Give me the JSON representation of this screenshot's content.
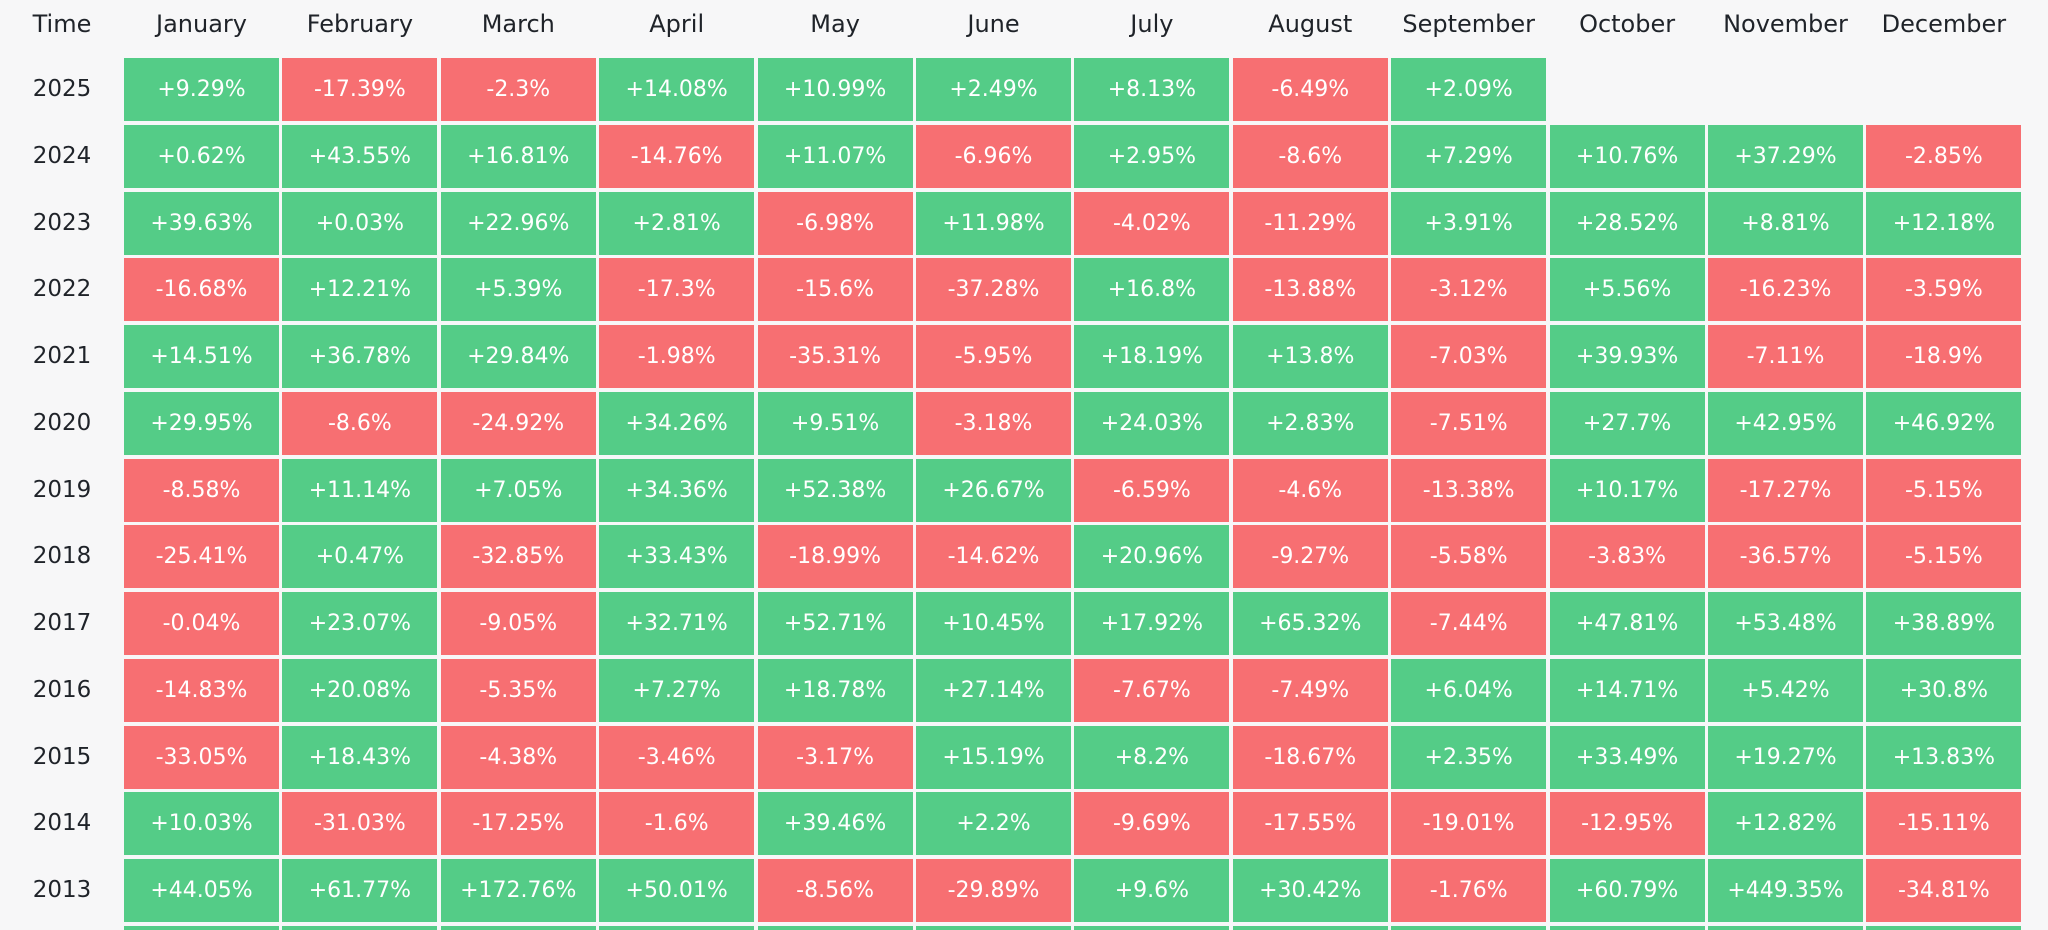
{
  "chart_data": {
    "type": "heatmap",
    "corner_label": "Time",
    "months": [
      "January",
      "February",
      "March",
      "April",
      "May",
      "June",
      "July",
      "August",
      "September",
      "October",
      "November",
      "December"
    ],
    "colors": {
      "positive": "#54cc87",
      "negative": "#f76f72"
    },
    "rows": [
      {
        "year": "2025",
        "values": [
          "+9.29%",
          "-17.39%",
          "-2.3%",
          "+14.08%",
          "+10.99%",
          "+2.49%",
          "+8.13%",
          "-6.49%",
          "+2.09%",
          "",
          "",
          ""
        ]
      },
      {
        "year": "2024",
        "values": [
          "+0.62%",
          "+43.55%",
          "+16.81%",
          "-14.76%",
          "+11.07%",
          "-6.96%",
          "+2.95%",
          "-8.6%",
          "+7.29%",
          "+10.76%",
          "+37.29%",
          "-2.85%"
        ]
      },
      {
        "year": "2023",
        "values": [
          "+39.63%",
          "+0.03%",
          "+22.96%",
          "+2.81%",
          "-6.98%",
          "+11.98%",
          "-4.02%",
          "-11.29%",
          "+3.91%",
          "+28.52%",
          "+8.81%",
          "+12.18%"
        ]
      },
      {
        "year": "2022",
        "values": [
          "-16.68%",
          "+12.21%",
          "+5.39%",
          "-17.3%",
          "-15.6%",
          "-37.28%",
          "+16.8%",
          "-13.88%",
          "-3.12%",
          "+5.56%",
          "-16.23%",
          "-3.59%"
        ]
      },
      {
        "year": "2021",
        "values": [
          "+14.51%",
          "+36.78%",
          "+29.84%",
          "-1.98%",
          "-35.31%",
          "-5.95%",
          "+18.19%",
          "+13.8%",
          "-7.03%",
          "+39.93%",
          "-7.11%",
          "-18.9%"
        ]
      },
      {
        "year": "2020",
        "values": [
          "+29.95%",
          "-8.6%",
          "-24.92%",
          "+34.26%",
          "+9.51%",
          "-3.18%",
          "+24.03%",
          "+2.83%",
          "-7.51%",
          "+27.7%",
          "+42.95%",
          "+46.92%"
        ]
      },
      {
        "year": "2019",
        "values": [
          "-8.58%",
          "+11.14%",
          "+7.05%",
          "+34.36%",
          "+52.38%",
          "+26.67%",
          "-6.59%",
          "-4.6%",
          "-13.38%",
          "+10.17%",
          "-17.27%",
          "-5.15%"
        ]
      },
      {
        "year": "2018",
        "values": [
          "-25.41%",
          "+0.47%",
          "-32.85%",
          "+33.43%",
          "-18.99%",
          "-14.62%",
          "+20.96%",
          "-9.27%",
          "-5.58%",
          "-3.83%",
          "-36.57%",
          "-5.15%"
        ]
      },
      {
        "year": "2017",
        "values": [
          "-0.04%",
          "+23.07%",
          "-9.05%",
          "+32.71%",
          "+52.71%",
          "+10.45%",
          "+17.92%",
          "+65.32%",
          "-7.44%",
          "+47.81%",
          "+53.48%",
          "+38.89%"
        ]
      },
      {
        "year": "2016",
        "values": [
          "-14.83%",
          "+20.08%",
          "-5.35%",
          "+7.27%",
          "+18.78%",
          "+27.14%",
          "-7.67%",
          "-7.49%",
          "+6.04%",
          "+14.71%",
          "+5.42%",
          "+30.8%"
        ]
      },
      {
        "year": "2015",
        "values": [
          "-33.05%",
          "+18.43%",
          "-4.38%",
          "-3.46%",
          "-3.17%",
          "+15.19%",
          "+8.2%",
          "-18.67%",
          "+2.35%",
          "+33.49%",
          "+19.27%",
          "+13.83%"
        ]
      },
      {
        "year": "2014",
        "values": [
          "+10.03%",
          "-31.03%",
          "-17.25%",
          "-1.6%",
          "+39.46%",
          "+2.2%",
          "-9.69%",
          "-17.55%",
          "-19.01%",
          "-12.95%",
          "+12.82%",
          "-15.11%"
        ]
      },
      {
        "year": "2013",
        "values": [
          "+44.05%",
          "+61.77%",
          "+172.76%",
          "+50.01%",
          "-8.56%",
          "-29.89%",
          "+9.6%",
          "+30.42%",
          "-1.76%",
          "+60.79%",
          "+449.35%",
          "-34.81%"
        ]
      }
    ],
    "partial_row_colors": [
      "positive",
      "positive",
      "positive",
      "positive",
      "positive",
      "positive",
      "positive",
      "positive",
      "positive",
      "positive",
      "positive",
      "positive"
    ]
  }
}
